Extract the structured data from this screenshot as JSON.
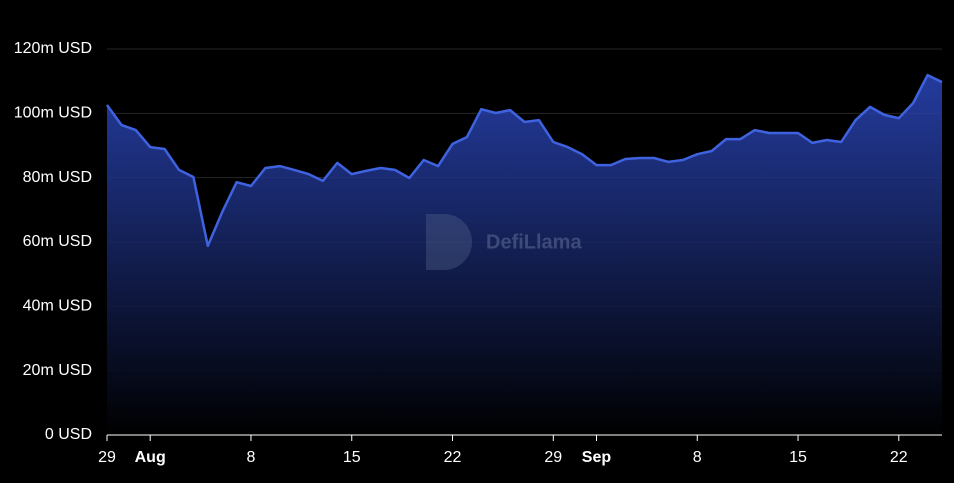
{
  "chart_data": {
    "type": "area",
    "watermark": "DefiLlama",
    "categories": [
      "29",
      null,
      null,
      "Aug",
      null,
      null,
      null,
      null,
      null,
      null,
      "8",
      null,
      null,
      null,
      null,
      null,
      null,
      "15",
      null,
      null,
      null,
      null,
      null,
      null,
      "22",
      null,
      null,
      null,
      null,
      null,
      null,
      "29",
      null,
      null,
      "Sep",
      null,
      null,
      null,
      null,
      null,
      null,
      "8",
      null,
      null,
      null,
      null,
      null,
      null,
      "15",
      null,
      null,
      null,
      null,
      null,
      null,
      "22",
      null,
      null,
      null
    ],
    "values": [
      102.6,
      96.4,
      94.8,
      89.5,
      88.9,
      82.4,
      80.2,
      58.8,
      69.3,
      78.6,
      77.4,
      83.0,
      83.6,
      82.4,
      81.1,
      79.0,
      84.6,
      81.1,
      82.1,
      83.0,
      82.4,
      79.9,
      85.5,
      83.6,
      90.5,
      92.6,
      101.3,
      100.1,
      101.0,
      97.3,
      97.9,
      91.1,
      89.5,
      87.3,
      83.9,
      83.9,
      85.8,
      86.1,
      86.1,
      84.9,
      85.5,
      87.3,
      88.3,
      92.0,
      92.0,
      94.8,
      93.9,
      93.9,
      93.9,
      90.8,
      91.7,
      91.1,
      97.9,
      102.0,
      99.5,
      98.5,
      103.2,
      111.9,
      109.7
    ],
    "color": "#3f63e0",
    "ylim": [
      0,
      120
    ],
    "yticks": [
      {
        "value": 0,
        "label": "0 USD"
      },
      {
        "value": 20,
        "label": "20m USD"
      },
      {
        "value": 40,
        "label": "40m USD"
      },
      {
        "value": 60,
        "label": "60m USD"
      },
      {
        "value": 80,
        "label": "80m USD"
      },
      {
        "value": 100,
        "label": "100m USD"
      },
      {
        "value": 120,
        "label": "120m USD"
      }
    ],
    "grid": true
  }
}
